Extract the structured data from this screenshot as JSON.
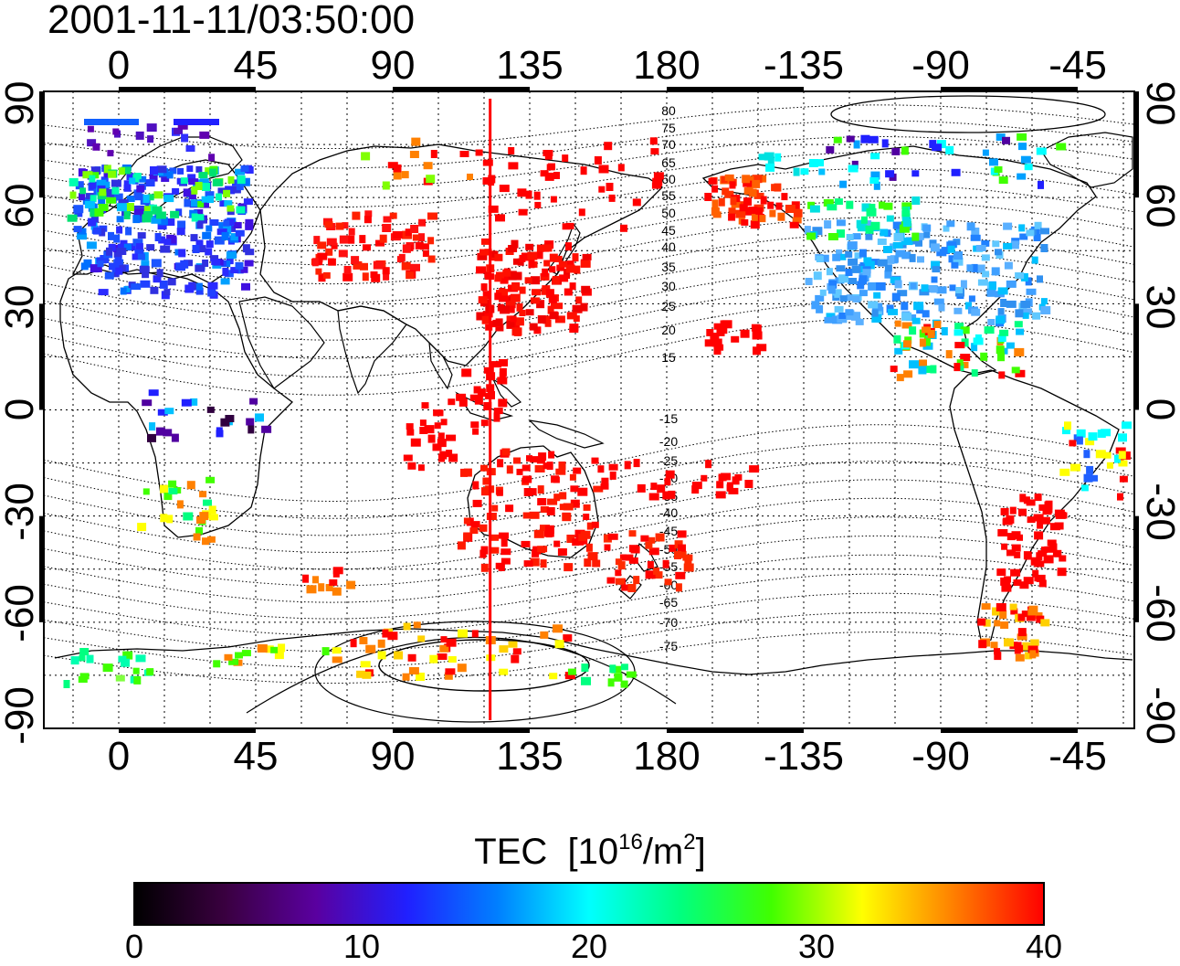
{
  "timestamp": "2001-11-11/03:50:00",
  "lon_ticks": [
    "0",
    "45",
    "90",
    "135",
    "180",
    "-135",
    "-90",
    "-45"
  ],
  "lat_ticks": [
    "90",
    "60",
    "30",
    "0",
    "-30",
    "-60",
    "-90"
  ],
  "colorbar": {
    "title_main": "TEC",
    "title_open": "[10",
    "title_exp": "16",
    "title_mid": "/m",
    "title_exp2": "2",
    "title_close": "]",
    "ticks": [
      "0",
      "10",
      "20",
      "30",
      "40"
    ],
    "min": 0,
    "max": 40,
    "stops": [
      "#000000",
      "#3a0040",
      "#5a00a0",
      "#2020ff",
      "#0080ff",
      "#00ffff",
      "#00ff80",
      "#40ff00",
      "#ffff00",
      "#ff8000",
      "#ff0000"
    ]
  },
  "contour_labels": [
    "80",
    "75",
    "70",
    "65",
    "60",
    "55",
    "50",
    "45",
    "40",
    "35",
    "30",
    "25",
    "20",
    "15",
    "-15",
    "-20",
    "-25",
    "-30",
    "-35",
    "-40",
    "-45",
    "-50",
    "-55",
    "-60",
    "-65",
    "-70",
    "-75"
  ],
  "marker_longitude": 122,
  "marker_color": "#ff0000"
}
